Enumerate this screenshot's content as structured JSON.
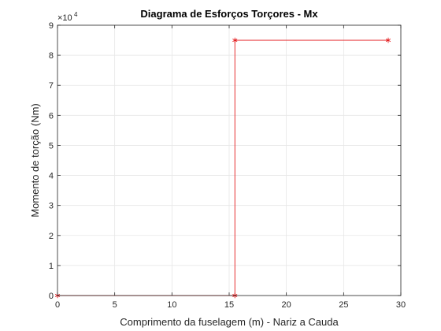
{
  "chart_data": {
    "type": "line",
    "title": "Diagrama de Esforços Torçores - Mx",
    "xlabel": "Comprimento da fuselagem (m) - Nariz a Cauda",
    "ylabel": "Momento de torção (Nm)",
    "xlim": [
      0,
      30
    ],
    "ylim": [
      0,
      90000
    ],
    "xticks": [
      0,
      5,
      10,
      15,
      20,
      25,
      30
    ],
    "yticks": [
      0,
      10000,
      20000,
      30000,
      40000,
      50000,
      60000,
      70000,
      80000,
      90000
    ],
    "ytick_labels": [
      "0",
      "1",
      "2",
      "3",
      "4",
      "5",
      "6",
      "7",
      "8",
      "9"
    ],
    "y_exponent_label": "×10",
    "y_exponent_power": "4",
    "grid": true,
    "marker": "asterisk",
    "colors": {
      "line": "#e41a1c",
      "grid": "#e6e6e6",
      "axis": "#262626"
    },
    "series": [
      {
        "x": [
          0,
          15.5,
          15.5,
          28.9
        ],
        "y": [
          0,
          0,
          85000,
          85000
        ]
      }
    ]
  }
}
